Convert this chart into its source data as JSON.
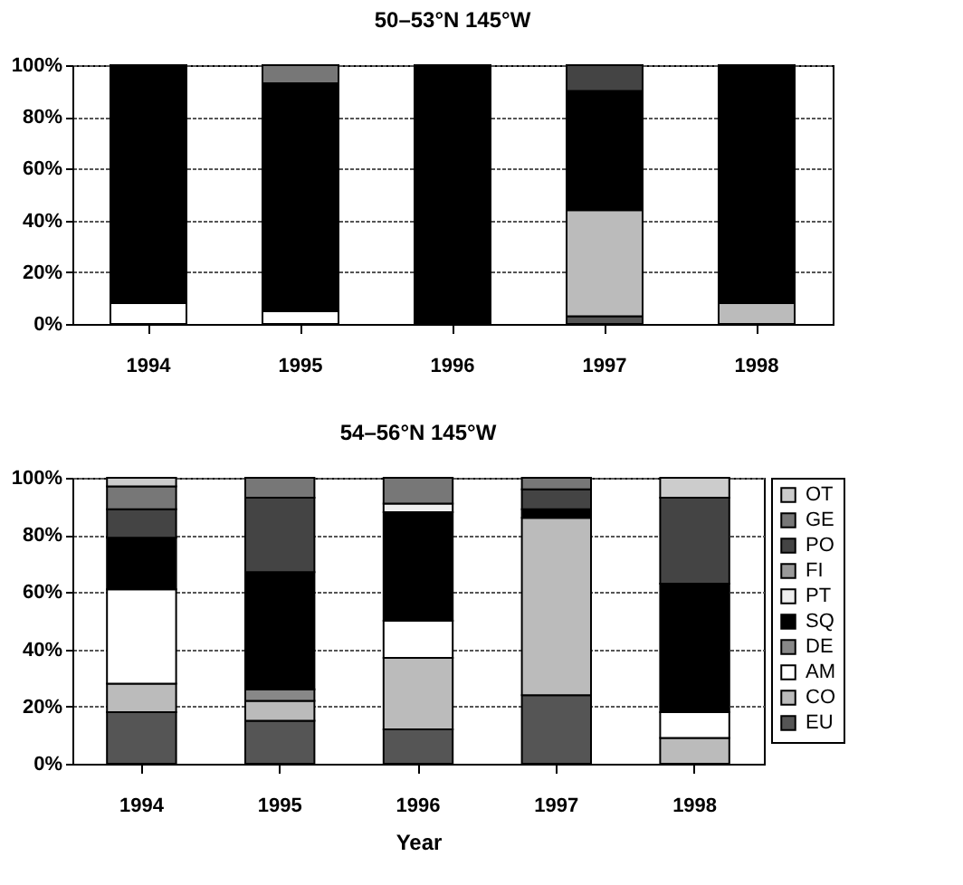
{
  "chart_data": [
    {
      "type": "bar",
      "title": "50–53°N 145°W",
      "stacked": true,
      "categories": [
        "1994",
        "1995",
        "1996",
        "1997",
        "1998"
      ],
      "ylim": [
        0,
        100
      ],
      "yticks": [
        {
          "value": 0,
          "label": "0%"
        },
        {
          "value": 20,
          "label": "20%"
        },
        {
          "value": 40,
          "label": "40%"
        },
        {
          "value": 60,
          "label": "60%"
        },
        {
          "value": 80,
          "label": "80%"
        },
        {
          "value": 100,
          "label": "100%"
        }
      ],
      "grid": "y",
      "legend": false,
      "series": [
        {
          "color": "#555555",
          "values": [
            0,
            0,
            0,
            3,
            0
          ]
        },
        {
          "color": "#bbbbbb",
          "values": [
            0,
            0,
            0,
            41,
            8
          ]
        },
        {
          "color": "#ffffff",
          "values": [
            8,
            5,
            0,
            0,
            0
          ]
        },
        {
          "color": "#000000",
          "values": [
            92,
            88,
            100,
            46,
            92
          ]
        },
        {
          "color": "#444444",
          "values": [
            0,
            0,
            0,
            10,
            0
          ]
        },
        {
          "color": "#777777",
          "values": [
            0,
            7,
            0,
            0,
            0
          ]
        }
      ]
    },
    {
      "type": "bar",
      "title": "54–56°N 145°W",
      "xlabel": "Year",
      "stacked": true,
      "categories": [
        "1994",
        "1995",
        "1996",
        "1997",
        "1998"
      ],
      "ylim": [
        0,
        100
      ],
      "yticks": [
        {
          "value": 0,
          "label": "0%"
        },
        {
          "value": 20,
          "label": "20%"
        },
        {
          "value": 40,
          "label": "40%"
        },
        {
          "value": 60,
          "label": "60%"
        },
        {
          "value": 80,
          "label": "80%"
        },
        {
          "value": 100,
          "label": "100%"
        }
      ],
      "grid": "y",
      "legend": "right",
      "series": [
        {
          "name": "EU",
          "color": "#555555",
          "values": [
            18,
            15,
            12,
            24,
            0
          ]
        },
        {
          "name": "CO",
          "color": "#bbbbbb",
          "values": [
            10,
            7,
            25,
            62,
            9
          ]
        },
        {
          "name": "AM",
          "color": "#ffffff",
          "values": [
            33,
            0,
            13,
            0,
            9
          ]
        },
        {
          "name": "DE",
          "color": "#888888",
          "values": [
            0,
            4,
            0,
            0,
            0
          ]
        },
        {
          "name": "SQ",
          "color": "#000000",
          "values": [
            18,
            41,
            38,
            3,
            45
          ]
        },
        {
          "name": "PT",
          "color": "#eeeeee",
          "values": [
            0,
            0,
            3,
            0,
            0
          ]
        },
        {
          "name": "FI",
          "color": "#999999",
          "values": [
            0,
            0,
            0,
            0,
            0
          ]
        },
        {
          "name": "PO",
          "color": "#444444",
          "values": [
            10,
            26,
            0,
            7,
            30
          ]
        },
        {
          "name": "GE",
          "color": "#777777",
          "values": [
            8,
            7,
            9,
            4,
            0
          ]
        },
        {
          "name": "OT",
          "color": "#cccccc",
          "values": [
            3,
            0,
            0,
            0,
            7
          ]
        }
      ]
    }
  ]
}
